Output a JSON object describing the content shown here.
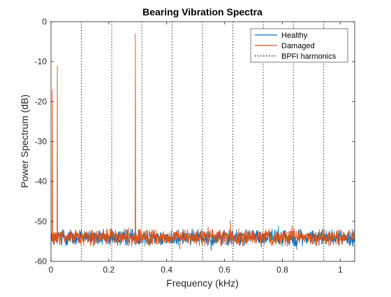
{
  "chart_data": {
    "type": "line",
    "title": "Bearing Vibration Spectra",
    "xlabel": "Frequency (kHz)",
    "ylabel": "Power Spectrum (dB)",
    "xlim": [
      0,
      1.05
    ],
    "ylim": [
      -60,
      0
    ],
    "xticks": [
      0,
      0.2,
      0.4,
      0.6,
      0.8,
      1
    ],
    "xtick_labels": [
      "0",
      "0.2",
      "0.4",
      "0.6",
      "0.8",
      "1"
    ],
    "yticks": [
      -60,
      -50,
      -40,
      -30,
      -20,
      -10,
      0
    ],
    "ytick_labels": [
      "-60",
      "-50",
      "-40",
      "-30",
      "-20",
      "-10",
      "0"
    ],
    "legend_position": "top-right",
    "grid": false,
    "legend": [
      {
        "label": "Healthy",
        "color": "#0072BD",
        "style": "solid"
      },
      {
        "label": "Damaged",
        "color": "#D95319",
        "style": "solid"
      },
      {
        "label": "BPFI harmonics",
        "color": "#000000",
        "style": "dotted"
      }
    ],
    "series": [
      {
        "name": "Healthy",
        "color": "#0072BD",
        "noise_floor_db": -54,
        "x_range": [
          0,
          1.05
        ]
      },
      {
        "name": "Damaged",
        "color": "#D95319",
        "noise_floor_db": -54,
        "x_range": [
          0,
          1.05
        ],
        "peaks": [
          {
            "x": 0.005,
            "y": -17
          },
          {
            "x": 0.022,
            "y": -11
          },
          {
            "x": 0.292,
            "y": -3
          }
        ]
      },
      {
        "name": "BPFI harmonics",
        "color": "#000000",
        "style": "dotted",
        "x": [
          0.105,
          0.21,
          0.314,
          0.419,
          0.524,
          0.629,
          0.734,
          0.838,
          0.943
        ]
      }
    ]
  }
}
